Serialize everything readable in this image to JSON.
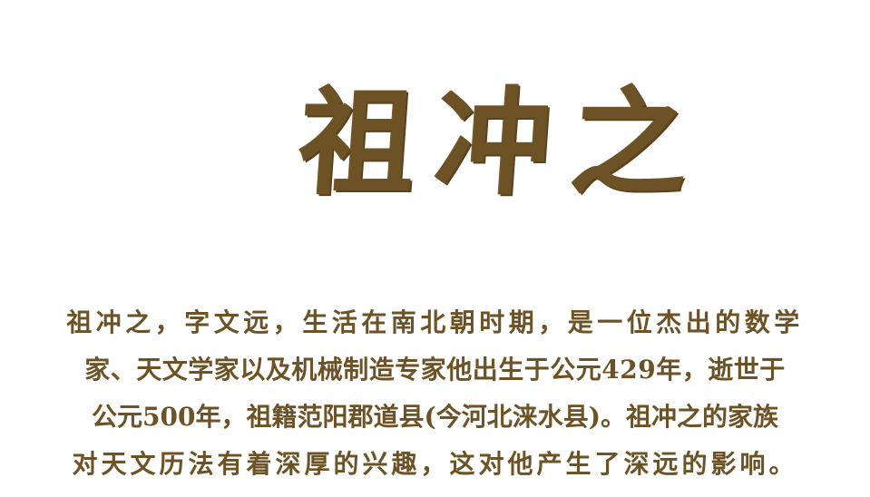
{
  "title": "祖冲之",
  "paragraph_lines": [
    "祖冲之，字文远，生活在南北朝时期，是一位杰出的数学",
    "家、天文学家以及机械制造专家他出生于公元429年，逝世于",
    "公元500年，祖籍范阳郡道县(今河北涞水县)。祖冲之的家族",
    "对天文历法有着深厚的兴趣，这对他产生了深远的影响。"
  ],
  "colors": {
    "text": "#6d5226",
    "background": "#ffffff"
  }
}
